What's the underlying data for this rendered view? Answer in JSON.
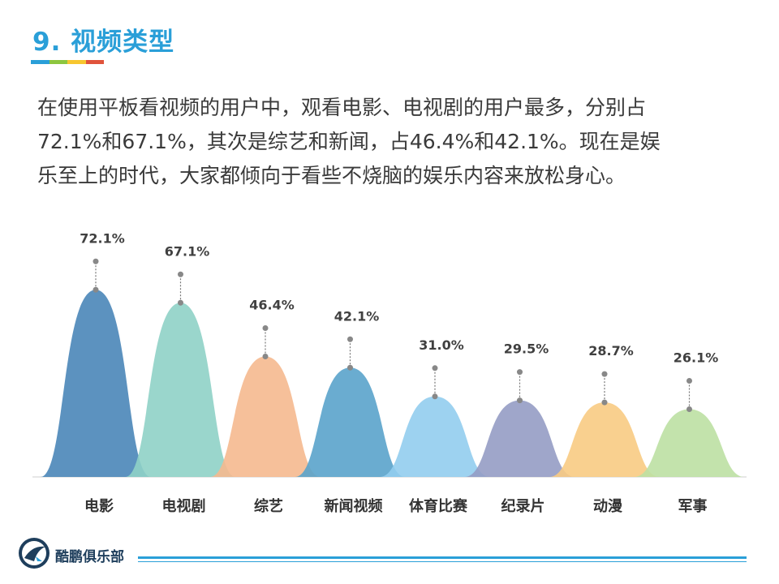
{
  "header": {
    "title": "9. 视频类型",
    "accent_colors": [
      "#2a9fd8",
      "#8dc63f",
      "#f7c62f",
      "#e0533b"
    ]
  },
  "description": {
    "line1": "在使用平板看视频的用户中，观看电影、电视剧的用户最多，分别占",
    "line2": "72.1%和67.1%，其次是综艺和新闻，占46.4%和42.1%。现在是娱",
    "line3": "乐至上的时代，大家都倾向于看些不烧脑的娱乐内容来放松身心。"
  },
  "chart_data": {
    "type": "bar",
    "title": "",
    "xlabel": "",
    "ylabel": "",
    "ylim": [
      0,
      80
    ],
    "categories": [
      "电影",
      "电视剧",
      "综艺",
      "新闻视频",
      "体育比赛",
      "纪录片",
      "动漫",
      "军事"
    ],
    "values": [
      72.1,
      67.1,
      46.4,
      42.1,
      31.0,
      29.5,
      28.7,
      26.1
    ],
    "value_labels": [
      "72.1%",
      "67.1%",
      "46.4%",
      "42.1%",
      "31.0%",
      "29.5%",
      "28.7%",
      "26.1%"
    ],
    "colors": [
      "#4a86b8",
      "#8fd1c6",
      "#f5b98f",
      "#5aa3cb",
      "#92cdee",
      "#959cc4",
      "#f8cb83",
      "#bde0a3"
    ]
  },
  "footer": {
    "brand": "酷鹏俱乐部",
    "logo_icon": "penguin-logo-icon"
  }
}
